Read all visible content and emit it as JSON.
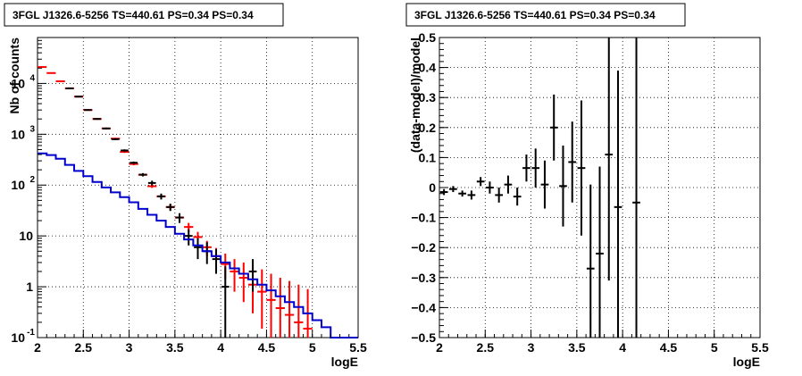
{
  "chart_data": [
    {
      "type": "line",
      "title": "3FGL J1326.6-5256 TS=440.61 PS=0.34 PS=0.34",
      "xlabel": "logE",
      "ylabel": "Nb of counts",
      "xlim": [
        2,
        5.5
      ],
      "ylim": [
        0.1,
        80000
      ],
      "yscale": "log",
      "grid": true,
      "x_ticks": [
        "2",
        "2.5",
        "3",
        "3.5",
        "4",
        "4.5",
        "5",
        "5.5"
      ],
      "y_ticks": [
        {
          "v": 0.1,
          "label": "10",
          "sup": "-1"
        },
        {
          "v": 1,
          "label": "1",
          "sup": ""
        },
        {
          "v": 10,
          "label": "10",
          "sup": ""
        },
        {
          "v": 100,
          "label": "10",
          "sup": "2"
        },
        {
          "v": 1000,
          "label": "10",
          "sup": "3"
        },
        {
          "v": 10000,
          "label": "10",
          "sup": "4"
        }
      ],
      "series": [
        {
          "color": "#ff0000",
          "style": "hbars-errors",
          "x": [
            2.05,
            2.15,
            2.25,
            2.35,
            2.45,
            2.55,
            2.65,
            2.75,
            2.85,
            2.95,
            3.05,
            3.15,
            3.25,
            3.35,
            3.45,
            3.55,
            3.65,
            3.75,
            3.85,
            3.95,
            4.05,
            4.15,
            4.25,
            4.35,
            4.45,
            4.55,
            4.65,
            4.75,
            4.85,
            4.95
          ],
          "y": [
            21000,
            16000,
            11000,
            8000,
            5500,
            3000,
            2000,
            1300,
            820,
            450,
            260,
            160,
            95,
            60,
            37,
            23,
            15,
            9.5,
            6,
            4,
            2.8,
            2,
            1.5,
            1.1,
            0.8,
            0.55,
            0.38,
            0.28,
            0.2,
            0.15
          ],
          "ylo": [
            20500,
            15600,
            10700,
            7800,
            5350,
            2900,
            1930,
            1250,
            790,
            430,
            245,
            150,
            88,
            54,
            32,
            19,
            12,
            7,
            4,
            2.4,
            1.4,
            0.8,
            0.5,
            0.3,
            0.15,
            0.1,
            0.1,
            0.1,
            0.1,
            0.1
          ],
          "yhi": [
            21500,
            16400,
            11300,
            8200,
            5650,
            3100,
            2070,
            1350,
            850,
            470,
            275,
            170,
            102,
            66,
            42,
            27,
            18,
            12,
            8,
            5.8,
            4.5,
            3.5,
            3,
            2.5,
            2.2,
            1.8,
            1.5,
            1.3,
            1.1,
            0.9
          ]
        },
        {
          "color": "#000000",
          "style": "points-errors",
          "x": [
            2.35,
            2.45,
            2.55,
            2.65,
            2.75,
            2.85,
            2.95,
            3.05,
            3.15,
            3.25,
            3.35,
            3.45,
            3.55,
            3.65,
            3.75,
            3.85,
            3.95,
            4.05,
            4.35
          ],
          "y": [
            8000,
            5500,
            3000,
            2000,
            1300,
            800,
            480,
            275,
            160,
            110,
            60,
            37,
            23,
            10,
            6,
            5,
            3.5,
            1,
            2
          ],
          "ylo": [
            7800,
            5350,
            2900,
            1930,
            1250,
            770,
            455,
            260,
            148,
            98,
            52,
            31,
            18,
            6.5,
            3.5,
            2.8,
            1.8,
            0.1,
            0.8
          ],
          "yhi": [
            8200,
            5650,
            3100,
            2070,
            1350,
            830,
            505,
            290,
            172,
            122,
            68,
            43,
            28,
            13.5,
            9,
            7.5,
            5.5,
            2.5,
            3.5
          ]
        },
        {
          "color": "#0000cc",
          "style": "step",
          "x": [
            2.0,
            2.1,
            2.2,
            2.3,
            2.4,
            2.5,
            2.6,
            2.7,
            2.8,
            2.9,
            3.0,
            3.1,
            3.2,
            3.3,
            3.4,
            3.5,
            3.6,
            3.7,
            3.8,
            3.9,
            4.0,
            4.1,
            4.2,
            4.3,
            4.4,
            4.5,
            4.6,
            4.7,
            4.8,
            4.9,
            5.0,
            5.1,
            5.2,
            5.3,
            5.4
          ],
          "y": [
            420,
            390,
            330,
            250,
            190,
            150,
            115,
            90,
            72,
            58,
            46,
            34,
            26,
            20,
            15,
            11,
            8.5,
            6.5,
            5,
            4,
            3,
            2.3,
            1.8,
            1.4,
            1.1,
            0.85,
            0.65,
            0.5,
            0.4,
            0.3,
            0.22,
            0.16,
            0.1,
            0.1,
            0.1
          ]
        }
      ]
    },
    {
      "type": "scatter",
      "title": "3FGL J1326.6-5256 TS=440.61 PS=0.34 PS=0.34",
      "xlabel": "logE",
      "ylabel": "(data-model)/model",
      "xlim": [
        2,
        5.5
      ],
      "ylim": [
        -0.5,
        0.5
      ],
      "grid": true,
      "x_ticks": [
        "2",
        "2.5",
        "3",
        "3.5",
        "4",
        "4.5",
        "5",
        "5.5"
      ],
      "y_ticks": [
        "−0.5",
        "−0.4",
        "−0.3",
        "−0.2",
        "−0.1",
        "0",
        "0.1",
        "0.2",
        "0.3",
        "0.4",
        "0.5"
      ],
      "series": [
        {
          "color": "#000000",
          "style": "points-errors",
          "x": [
            2.05,
            2.15,
            2.25,
            2.35,
            2.45,
            2.55,
            2.65,
            2.75,
            2.85,
            2.95,
            3.05,
            3.15,
            3.25,
            3.35,
            3.45,
            3.55,
            3.65,
            3.75,
            3.85,
            3.95,
            4.15
          ],
          "y": [
            -0.015,
            -0.005,
            -0.02,
            -0.025,
            0.02,
            0,
            -0.025,
            0.01,
            -0.03,
            0.065,
            0.065,
            0.01,
            0.2,
            0.005,
            0.085,
            0.065,
            -0.27,
            -0.22,
            0.11,
            -0.065,
            -0.05
          ],
          "ylo": [
            -0.025,
            -0.015,
            -0.03,
            -0.04,
            0.005,
            -0.02,
            -0.05,
            -0.02,
            -0.06,
            0.02,
            0,
            -0.07,
            0.09,
            -0.13,
            -0.05,
            -0.16,
            -0.5,
            -0.5,
            -0.31,
            -0.5,
            -0.5
          ],
          "yhi": [
            -0.005,
            0.005,
            -0.01,
            -0.01,
            0.035,
            0.02,
            0,
            0.04,
            0,
            0.11,
            0.13,
            0.09,
            0.31,
            0.14,
            0.22,
            0.29,
            0.01,
            0.07,
            0.5,
            0.39,
            0.5
          ]
        }
      ]
    }
  ]
}
